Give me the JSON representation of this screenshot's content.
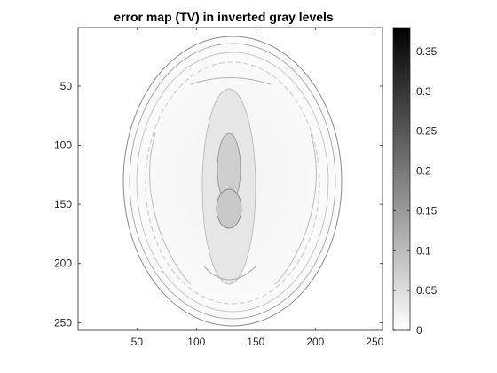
{
  "chart_data": {
    "type": "heatmap",
    "title": "error map (TV) in inverted gray levels",
    "xlabel": "",
    "ylabel": "",
    "x_range": [
      0.5,
      256.5
    ],
    "y_range": [
      0.5,
      256.5
    ],
    "y_direction": "reversed",
    "x_ticks": [
      "50",
      "100",
      "150",
      "200",
      "250"
    ],
    "x_tick_values": [
      50,
      100,
      150,
      200,
      250
    ],
    "y_ticks": [
      "50",
      "100",
      "150",
      "200",
      "250"
    ],
    "y_tick_values": [
      50,
      100,
      150,
      200,
      250
    ],
    "colormap": "inverted gray",
    "colorbar": {
      "range": [
        0,
        0.38
      ],
      "ticks": [
        "0",
        "0.05",
        "0.1",
        "0.15",
        "0.2",
        "0.25",
        "0.3",
        "0.35"
      ],
      "tick_values": [
        0,
        0.05,
        0.1,
        0.15,
        0.2,
        0.25,
        0.3,
        0.35
      ],
      "low_color": "#ffffff",
      "high_color": "#000000"
    },
    "grid": false
  }
}
